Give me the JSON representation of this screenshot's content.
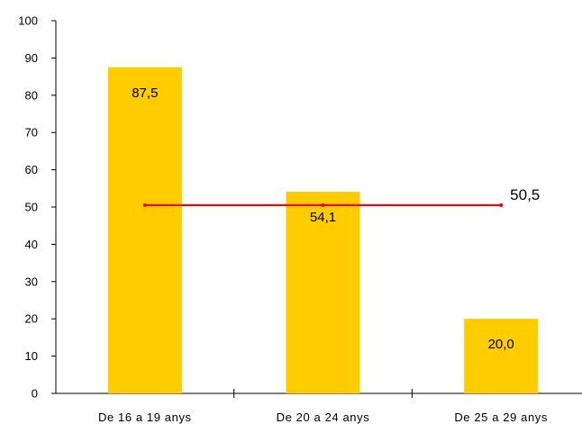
{
  "chart_data": {
    "type": "bar",
    "categories": [
      "De 16 a 19 anys",
      "De 20 a 24 anys",
      "De 25 a 29 anys"
    ],
    "series": [
      {
        "values": [
          87.5,
          54.1,
          20.0
        ],
        "labels": [
          "87,5",
          "54,1",
          "20,0"
        ],
        "color": "#FFCC00"
      }
    ],
    "reference_line": {
      "value": 50.5,
      "label": "50,5",
      "color": "#FF0000"
    },
    "ylim": [
      0,
      100
    ],
    "yticks": [
      0,
      10,
      20,
      30,
      40,
      50,
      60,
      70,
      80,
      90,
      100
    ],
    "title": "",
    "xlabel": "",
    "ylabel": "",
    "grid": false
  }
}
